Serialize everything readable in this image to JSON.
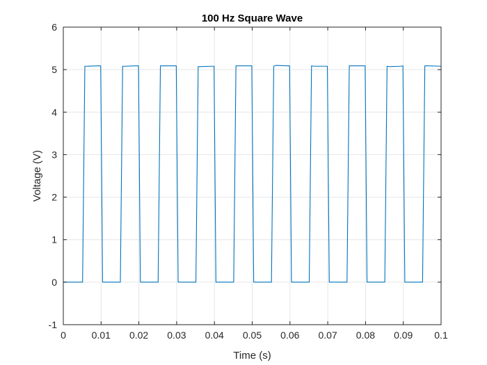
{
  "chart_data": {
    "type": "line",
    "title": "100 Hz Square Wave",
    "xlabel": "Time (s)",
    "ylabel": "Voltage (V)",
    "xlim": [
      0,
      0.1
    ],
    "ylim": [
      -1,
      6
    ],
    "xticks": [
      0,
      0.01,
      0.02,
      0.03,
      0.04,
      0.05,
      0.06,
      0.07,
      0.08,
      0.09,
      0.1
    ],
    "xtick_labels": [
      "0",
      "0.01",
      "0.02",
      "0.03",
      "0.04",
      "0.05",
      "0.06",
      "0.07",
      "0.08",
      "0.09",
      "0.1"
    ],
    "yticks": [
      -1,
      0,
      1,
      2,
      3,
      4,
      5,
      6
    ],
    "ytick_labels": [
      "-1",
      "0",
      "1",
      "2",
      "3",
      "4",
      "5",
      "6"
    ],
    "grid": true,
    "legend": false,
    "series": [
      {
        "color": "#0072BD",
        "x": [
          0,
          0.0051,
          0.0057,
          0.0063,
          0.0093,
          0.0099,
          0.0104,
          0.0109,
          0.0151,
          0.0157,
          0.0163,
          0.0193,
          0.0199,
          0.0204,
          0.0209,
          0.0251,
          0.0257,
          0.0263,
          0.0293,
          0.0299,
          0.0304,
          0.0309,
          0.0351,
          0.0357,
          0.0363,
          0.0393,
          0.0399,
          0.0404,
          0.0409,
          0.0451,
          0.0457,
          0.0463,
          0.0493,
          0.0499,
          0.0504,
          0.0509,
          0.0551,
          0.0557,
          0.0563,
          0.0593,
          0.0599,
          0.0604,
          0.0609,
          0.0651,
          0.0657,
          0.0663,
          0.0693,
          0.0699,
          0.0704,
          0.0709,
          0.0751,
          0.0757,
          0.0763,
          0.0793,
          0.0799,
          0.0804,
          0.0809,
          0.0851,
          0.0857,
          0.0863,
          0.0893,
          0.0899,
          0.0904,
          0.0909,
          0.0951,
          0.0957,
          0.0963,
          0.1
        ],
        "y": [
          0,
          0,
          5.08,
          5.08,
          5.09,
          5.09,
          0,
          0,
          0,
          5.08,
          5.08,
          5.09,
          5.09,
          0,
          0,
          0,
          5.09,
          5.09,
          5.09,
          5.09,
          0,
          0,
          0,
          5.07,
          5.07,
          5.08,
          5.08,
          0,
          0,
          0,
          5.09,
          5.09,
          5.09,
          5.09,
          0,
          0,
          0,
          5.08,
          5.1,
          5.09,
          5.09,
          0,
          0,
          0,
          5.09,
          5.08,
          5.08,
          5.08,
          0,
          0,
          0,
          5.09,
          5.09,
          5.09,
          5.09,
          0,
          0,
          0,
          5.08,
          5.07,
          5.08,
          5.09,
          0,
          0,
          0,
          5.09,
          5.09,
          5.08
        ]
      }
    ]
  }
}
